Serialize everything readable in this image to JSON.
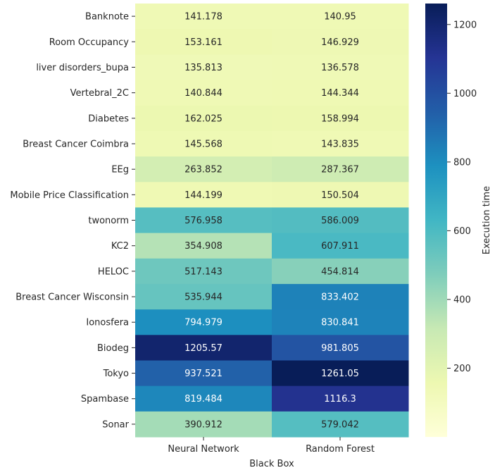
{
  "chart_data": {
    "type": "heatmap",
    "title": "",
    "xlabel": "Black Box",
    "ylabel": "",
    "columns": [
      "Neural Network",
      "Random Forest"
    ],
    "rows": [
      "Banknote",
      "Room Occupancy",
      "liver disorders_bupa",
      "Vertebral_2C",
      "Diabetes",
      "Breast Cancer Coimbra",
      "EEg",
      "Mobile Price Classification",
      "twonorm",
      "KC2",
      "HELOC",
      "Breast Cancer Wisconsin",
      "Ionosfera",
      "Biodeg",
      "Tokyo",
      "Spambase",
      "Sonar"
    ],
    "values": [
      [
        141.178,
        140.95
      ],
      [
        153.161,
        146.929
      ],
      [
        135.813,
        136.578
      ],
      [
        140.844,
        144.344
      ],
      [
        162.025,
        158.994
      ],
      [
        145.568,
        143.835
      ],
      [
        263.852,
        287.367
      ],
      [
        144.199,
        150.504
      ],
      [
        576.958,
        586.009
      ],
      [
        354.908,
        607.911
      ],
      [
        517.143,
        454.814
      ],
      [
        535.944,
        833.402
      ],
      [
        794.979,
        830.841
      ],
      [
        1205.57,
        981.805
      ],
      [
        937.521,
        1261.05
      ],
      [
        819.484,
        1116.3
      ],
      [
        390.912,
        579.042
      ]
    ],
    "cell_labels": [
      [
        "141.178",
        "140.95"
      ],
      [
        "153.161",
        "146.929"
      ],
      [
        "135.813",
        "136.578"
      ],
      [
        "140.844",
        "144.344"
      ],
      [
        "162.025",
        "158.994"
      ],
      [
        "145.568",
        "143.835"
      ],
      [
        "263.852",
        "287.367"
      ],
      [
        "144.199",
        "150.504"
      ],
      [
        "576.958",
        "586.009"
      ],
      [
        "354.908",
        "607.911"
      ],
      [
        "517.143",
        "454.814"
      ],
      [
        "535.944",
        "833.402"
      ],
      [
        "794.979",
        "830.841"
      ],
      [
        "1205.57",
        "981.805"
      ],
      [
        "937.521",
        "1261.05"
      ],
      [
        "819.484",
        "1116.3"
      ],
      [
        "390.912",
        "579.042"
      ]
    ],
    "colorbar": {
      "label": "Execution time",
      "colormap": "YlGnBu",
      "vmin": 0,
      "vmax": 1261.05,
      "ticks": [
        200,
        400,
        600,
        800,
        1000,
        1200
      ],
      "tick_labels": [
        "200",
        "400",
        "600",
        "800",
        "1000",
        "1200"
      ]
    },
    "grid": false,
    "legend": "colorbar-right"
  }
}
